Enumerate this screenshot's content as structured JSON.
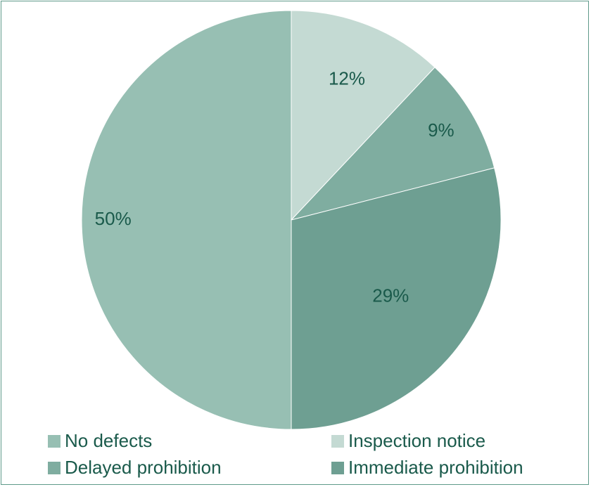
{
  "chart_data": {
    "type": "pie",
    "title": "",
    "slices": [
      {
        "label": "Inspection notice",
        "value": 12,
        "display": "12%",
        "color": "#c4dad3"
      },
      {
        "label": "Delayed prohibition",
        "value": 9,
        "display": "9%",
        "color": "#7fada0"
      },
      {
        "label": "Immediate prohibition",
        "value": 29,
        "display": "29%",
        "color": "#6e9f92"
      },
      {
        "label": "No defects",
        "value": 50,
        "display": "50%",
        "color": "#97bfb3"
      }
    ],
    "legend": [
      {
        "label": "No defects",
        "color": "#97bfb3"
      },
      {
        "label": "Inspection notice",
        "color": "#c4dad3"
      },
      {
        "label": "Delayed prohibition",
        "color": "#7fada0"
      },
      {
        "label": "Immediate prohibition",
        "color": "#6e9f92"
      }
    ],
    "legend_position": "bottom"
  }
}
